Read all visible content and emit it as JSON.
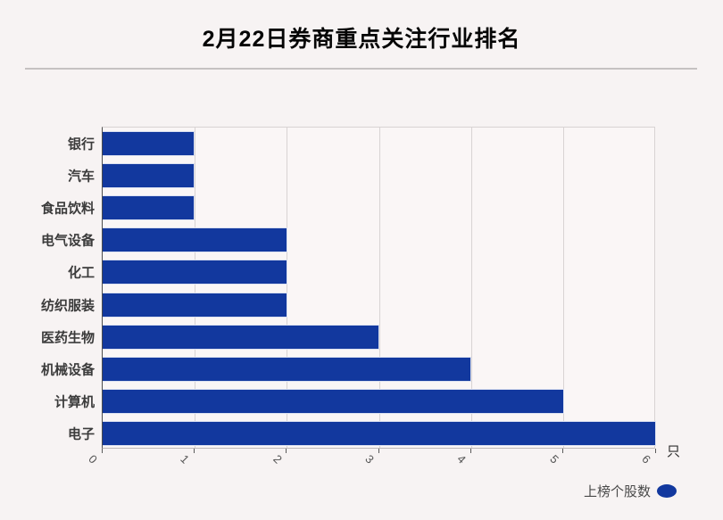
{
  "header": {
    "title": "2月22日券商重点关注行业排名"
  },
  "chart_data": {
    "type": "bar",
    "orientation": "horizontal",
    "title": "2月22日券商重点关注行业排名",
    "categories": [
      "银行",
      "汽车",
      "食品饮料",
      "电气设备",
      "化工",
      "纺织服装",
      "医药生物",
      "机械设备",
      "计算机",
      "电子"
    ],
    "values": [
      1,
      1,
      1,
      2,
      2,
      2,
      3,
      4,
      5,
      6
    ],
    "series_name": "上榜个股数",
    "xlabel_unit": "只",
    "xlim": [
      0,
      6
    ],
    "x_ticks": [
      "0",
      "1",
      "2",
      "3",
      "4",
      "5",
      "6"
    ],
    "grid": true,
    "legend_position": "bottom-right"
  },
  "colors": {
    "bar": "#12389e",
    "legend_marker": "#12389e",
    "page_background": "#f7f3f3",
    "plot_background": "#faf6f6",
    "gridline": "#d8d3d3",
    "divider": "#c5c1c1",
    "title_text": "#050505",
    "category_text": "#3b3b3b",
    "tick_text": "#555555"
  }
}
